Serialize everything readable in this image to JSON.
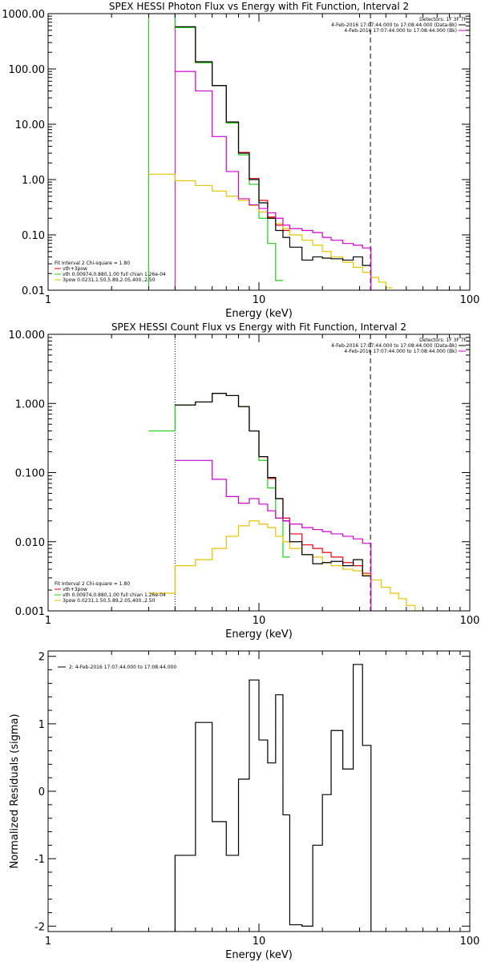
{
  "figure": {
    "panels": [
      {
        "title": "SPEX HESSI Photon Flux vs Energy with Fit Function, Interval 2",
        "xlabel": "Energy (keV)",
        "ylabel": "",
        "legend_right": [
          "Detectors: 1F 3F 7F",
          "4-Feb-2016 17:07:44.000 to 17:08:44.000 (Data-Bk)",
          "4-Feb-2016 17:07:44.000 to 17:08:44.000 (Bk)"
        ],
        "legend_left": [
          "Fit Interval 2   Chi-square = 1.80",
          "vth+3pow",
          "vth 0.00974,0.880,1.00  full chian 1.26e-04",
          "3pow 0.0231,1.50,5.89,2.05,400.,2.50"
        ]
      },
      {
        "title": "SPEX HESSI Count Flux vs Energy with Fit Function, Interval 2",
        "xlabel": "Energy (keV)",
        "ylabel": "",
        "legend_right": [
          "Detectors: 1F 3F 7F",
          "4-Feb-2016 17:07:44.000 to 17:08:44.000 (Data-Bk)",
          "4-Feb-2016 17:07:44.000 to 17:08:44.000 (Bk)"
        ],
        "legend_left": [
          "Fit Interval 2   Chi-square = 1.80",
          "vth+3pow",
          "vth 0.00974,0.880,1.00  full chian 1.26e-04",
          "3pow 0.0231,1.50,5.89,2.05,400.,2.50"
        ]
      },
      {
        "title": "",
        "xlabel": "Energy (keV)",
        "ylabel": "Normalized Residuals (sigma)",
        "legend_right": [],
        "legend_left": [
          "2:  4-Feb-2016 17:07:44.000 to 17:08:44.000"
        ]
      }
    ]
  },
  "colors": {
    "data": "#000000",
    "fit": "#e8000f",
    "vth": "#1ad21a",
    "pow": "#e6c200",
    "bk": "#d000d0",
    "axis": "#000000"
  },
  "chart_data": [
    {
      "type": "line",
      "title": "SPEX HESSI Photon Flux vs Energy with Fit Function, Interval 2",
      "xlabel": "Energy (keV)",
      "ylabel": "",
      "xscale": "log",
      "yscale": "log",
      "xlim": [
        1,
        100
      ],
      "ylim": [
        0.01,
        1000
      ],
      "xticks": [
        1,
        10,
        100
      ],
      "xtick_labels": [
        "1",
        "10",
        "100"
      ],
      "yticks": [
        0.01,
        0.1,
        1,
        10,
        100,
        1000
      ],
      "ytick_labels": [
        "0.01",
        "0.10",
        "1.00",
        "10.00",
        "100.00",
        "1000.00"
      ],
      "vlines": [
        {
          "x": 4.0,
          "style": "solid",
          "color_key": "bk"
        },
        {
          "x": 3.0,
          "style": "solid",
          "color_key": "vth"
        },
        {
          "x": 33.8,
          "style": "dashed",
          "color_key": "data"
        }
      ],
      "series": [
        {
          "name": "vth+3pow",
          "color_key": "fit",
          "step": true,
          "edges": [
            4.0,
            5.0,
            6.0,
            7.0,
            8.0,
            9.0,
            10.0,
            11.0,
            12.0,
            13.0,
            14.0
          ],
          "values": [
            560,
            130,
            50,
            11,
            3.1,
            1.05,
            0.42,
            0.21,
            0.15,
            0.12
          ]
        },
        {
          "name": "vth 0.00974,0.880,1.00  full chian 1.26e-04",
          "color_key": "vth",
          "step": true,
          "edges": [
            3.0,
            4.0,
            5.0,
            6.0,
            7.0,
            8.0,
            9.0,
            10.0,
            11.0,
            12.0,
            13.0
          ],
          "values": [
            1000,
            560,
            130,
            50,
            10.5,
            2.8,
            0.82,
            0.2,
            0.07,
            0.015
          ]
        },
        {
          "name": "3pow 0.0231,1.50,5.89,2.05,400.,2.50",
          "color_key": "pow",
          "step": true,
          "edges": [
            3.0,
            4.0,
            5.0,
            6.0,
            7.0,
            8.0,
            9.0,
            10.0,
            11.0,
            12.0,
            13.0,
            14.0,
            16.0,
            18.0,
            20.0,
            22.0,
            25.0,
            28.0,
            31.0,
            34.0,
            37.0,
            40.0,
            43.0
          ],
          "values": [
            1.25,
            0.95,
            0.78,
            0.62,
            0.5,
            0.42,
            0.34,
            0.26,
            0.2,
            0.16,
            0.13,
            0.1,
            0.08,
            0.065,
            0.05,
            0.04,
            0.032,
            0.026,
            0.021,
            0.017,
            0.014,
            0.011
          ]
        },
        {
          "name": "4-Feb-2016 17:07:44.000 to 17:08:44.000 (Data-Bk)",
          "color_key": "data",
          "step": true,
          "edges": [
            4.0,
            5.0,
            6.0,
            7.0,
            8.0,
            9.0,
            10.0,
            11.0,
            12.0,
            13.0,
            14.0,
            16.0,
            18.0,
            20.0,
            22.0,
            25.0,
            28.0,
            31.0,
            34.0
          ],
          "values": [
            580,
            135,
            50,
            11,
            3.0,
            1.0,
            0.38,
            0.2,
            0.12,
            0.09,
            0.06,
            0.035,
            0.04,
            0.038,
            0.037,
            0.035,
            0.04,
            0.028
          ]
        },
        {
          "name": "4-Feb-2016 17:07:44.000 to 17:08:44.000 (Bk)",
          "color_key": "bk",
          "step": true,
          "edges": [
            4.0,
            5.0,
            6.0,
            7.0,
            8.0,
            9.0,
            10.0,
            11.0,
            12.0,
            13.0,
            14.0,
            16.0,
            18.0,
            20.0,
            22.0,
            25.0,
            28.0,
            31.0,
            34.0
          ],
          "values": [
            90,
            40,
            6,
            1.4,
            0.45,
            0.35,
            0.3,
            0.25,
            0.2,
            0.15,
            0.13,
            0.12,
            0.11,
            0.09,
            0.08,
            0.07,
            0.065,
            0.058,
            0.01
          ]
        }
      ]
    },
    {
      "type": "line",
      "title": "SPEX HESSI Count Flux vs Energy with Fit Function, Interval 2",
      "xlabel": "Energy (keV)",
      "ylabel": "",
      "xscale": "log",
      "yscale": "log",
      "xlim": [
        1,
        100
      ],
      "ylim": [
        0.001,
        10
      ],
      "xticks": [
        1,
        10,
        100
      ],
      "xtick_labels": [
        "1",
        "10",
        "100"
      ],
      "yticks": [
        0.001,
        0.01,
        0.1,
        1,
        10
      ],
      "ytick_labels": [
        "0.001",
        "0.010",
        "0.100",
        "1.000",
        "10.000"
      ],
      "vlines": [
        {
          "x": 4.0,
          "style": "dotted",
          "color_key": "data"
        },
        {
          "x": 33.8,
          "style": "dashed",
          "color_key": "data"
        }
      ],
      "series": [
        {
          "name": "vth+3pow",
          "color_key": "fit",
          "step": true,
          "edges": [
            4.0,
            5.0,
            6.0,
            7.0,
            8.0,
            9.0,
            10.0,
            11.0,
            12.0,
            13.0,
            14.0,
            16.0,
            18.0,
            20.0,
            22.0,
            25.0,
            28.0,
            31.0,
            34.0
          ],
          "values": [
            0.95,
            1.05,
            1.4,
            1.3,
            0.9,
            0.4,
            0.17,
            0.082,
            0.042,
            0.022,
            0.013,
            0.009,
            0.008,
            0.007,
            0.006,
            0.005,
            0.0045,
            0.0035
          ]
        },
        {
          "name": "vth 0.00974,0.880,1.00  full chian 1.26e-04",
          "color_key": "vth",
          "step": true,
          "edges": [
            3.0,
            4.0,
            5.0,
            6.0,
            7.0,
            8.0,
            9.0,
            10.0,
            11.0,
            12.0,
            13.0,
            14.0
          ],
          "values": [
            0.4,
            0.95,
            1.05,
            1.4,
            1.3,
            0.9,
            0.4,
            0.15,
            0.06,
            0.022,
            0.006
          ]
        },
        {
          "name": "3pow 0.0231,1.50,5.89,2.05,400.,2.50",
          "color_key": "pow",
          "step": true,
          "edges": [
            3.0,
            4.0,
            5.0,
            6.0,
            7.0,
            8.0,
            9.0,
            10.0,
            11.0,
            12.0,
            13.0,
            14.0,
            16.0,
            18.0,
            20.0,
            22.0,
            25.0,
            28.0,
            31.0,
            34.0,
            38.0,
            42.0,
            46.0,
            50.0,
            55.0,
            60.0
          ],
          "values": [
            0.0018,
            0.0045,
            0.0055,
            0.008,
            0.012,
            0.017,
            0.02,
            0.018,
            0.016,
            0.012,
            0.01,
            0.008,
            0.0065,
            0.006,
            0.005,
            0.0045,
            0.004,
            0.0038,
            0.0033,
            0.0028,
            0.0022,
            0.0018,
            0.0015,
            0.0012,
            0.001
          ]
        },
        {
          "name": "4-Feb-2016 17:07:44.000 to 17:08:44.000 (Data-Bk)",
          "color_key": "data",
          "step": true,
          "edges": [
            4.0,
            5.0,
            6.0,
            7.0,
            8.0,
            9.0,
            10.0,
            11.0,
            12.0,
            13.0,
            14.0,
            16.0,
            18.0,
            20.0,
            22.0,
            25.0,
            28.0,
            31.0,
            34.0
          ],
          "values": [
            0.95,
            1.05,
            1.4,
            1.3,
            0.9,
            0.4,
            0.17,
            0.085,
            0.042,
            0.02,
            0.01,
            0.0065,
            0.0048,
            0.005,
            0.0052,
            0.0045,
            0.0055,
            0.0032
          ]
        },
        {
          "name": "4-Feb-2016 17:07:44.000 to 17:08:44.000 (Bk)",
          "color_key": "bk",
          "step": true,
          "edges": [
            4.0,
            5.0,
            6.0,
            7.0,
            8.0,
            9.0,
            10.0,
            11.0,
            12.0,
            13.0,
            14.0,
            16.0,
            18.0,
            20.0,
            22.0,
            25.0,
            28.0,
            31.0,
            34.0
          ],
          "values": [
            0.15,
            0.15,
            0.08,
            0.045,
            0.036,
            0.042,
            0.035,
            0.028,
            0.022,
            0.02,
            0.018,
            0.016,
            0.015,
            0.014,
            0.013,
            0.012,
            0.011,
            0.0095,
            0.001
          ]
        }
      ]
    },
    {
      "type": "line",
      "title": "",
      "xlabel": "Energy (keV)",
      "ylabel": "Normalized Residuals (sigma)",
      "xscale": "log",
      "yscale": "linear",
      "xlim": [
        1,
        100
      ],
      "ylim": [
        -2.08,
        2.08
      ],
      "xticks": [
        1,
        10,
        100
      ],
      "xtick_labels": [
        "1",
        "10",
        "100"
      ],
      "yticks": [
        -2,
        -1,
        0,
        1,
        2
      ],
      "ytick_labels": [
        "-2",
        "-1",
        "0",
        "1",
        "2"
      ],
      "vlines": [],
      "series": [
        {
          "name": "2:  4-Feb-2016 17:07:44.000 to 17:08:44.000",
          "color_key": "data",
          "step": true,
          "edges": [
            4.0,
            5.0,
            6.0,
            7.0,
            8.0,
            9.0,
            10.0,
            11.0,
            12.0,
            13.0,
            14.0,
            16.0,
            18.0,
            20.0,
            22.0,
            25.0,
            28.0,
            31.0,
            34.0
          ],
          "values": [
            -0.95,
            1.02,
            -0.45,
            -0.95,
            0.18,
            1.65,
            0.76,
            0.42,
            1.43,
            -0.35,
            -1.98,
            -2.0,
            -0.8,
            -0.05,
            0.9,
            0.33,
            1.88,
            0.68
          ],
          "drop_to_floor": true
        }
      ]
    }
  ]
}
